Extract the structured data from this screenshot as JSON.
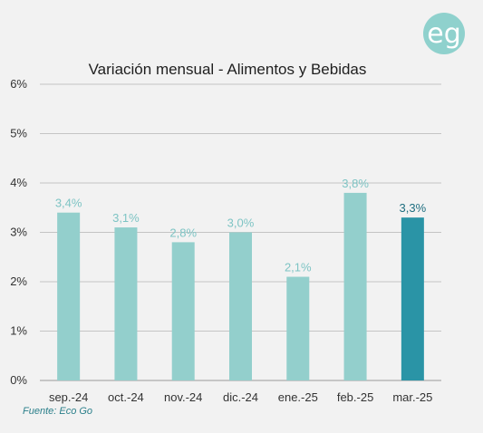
{
  "logo": {
    "text": "eg",
    "color": "#8fd1cd"
  },
  "source": "Fuente: Eco Go",
  "colors": {
    "bar": "#93cfcc",
    "bar_highlight": "#2a94a6",
    "label": "#7ec4c4",
    "label_highlight": "#1f6f80"
  },
  "chart_data": {
    "type": "bar",
    "title": "Variación mensual - Alimentos y Bebidas",
    "xlabel": "",
    "ylabel": "",
    "categories": [
      "sep.-24",
      "oct.-24",
      "nov.-24",
      "dic.-24",
      "ene.-25",
      "feb.-25",
      "mar.-25"
    ],
    "values": [
      3.4,
      3.1,
      2.8,
      3.0,
      2.1,
      3.8,
      3.3
    ],
    "data_labels": [
      "3,4%",
      "3,1%",
      "2,8%",
      "3,0%",
      "2,1%",
      "3,8%",
      "3,3%"
    ],
    "highlight_index": 6,
    "ylim": [
      0,
      6
    ],
    "yticks": [
      "0%",
      "1%",
      "2%",
      "3%",
      "4%",
      "5%",
      "6%"
    ],
    "grid": true,
    "legend": "none"
  }
}
